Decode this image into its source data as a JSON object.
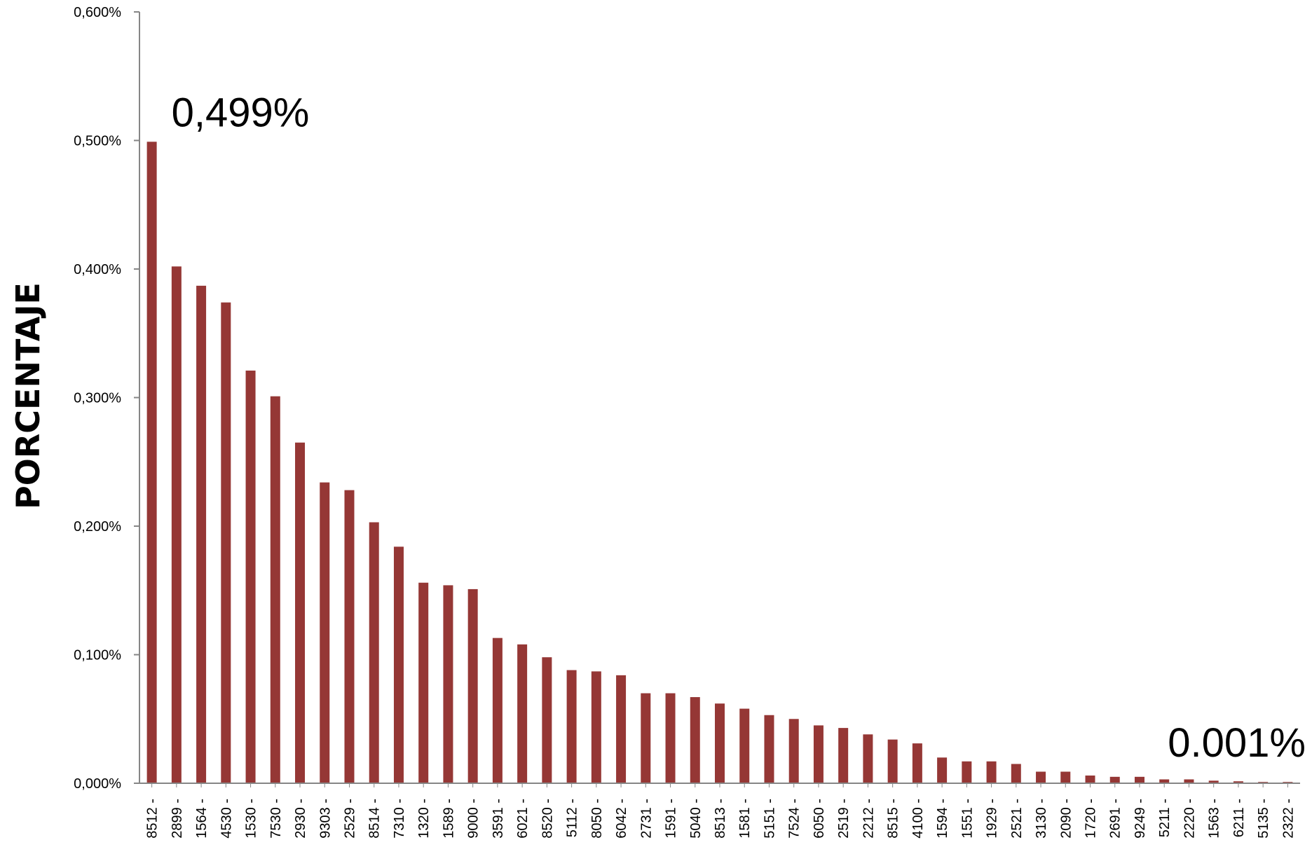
{
  "chart_data": {
    "type": "bar",
    "title": "",
    "xlabel": "",
    "ylabel": "PORCENTAJE",
    "ylim": [
      0,
      0.6
    ],
    "yticks": [
      "0,000%",
      "0,100%",
      "0,200%",
      "0,300%",
      "0,400%",
      "0,500%",
      "0,600%"
    ],
    "yunit": "%",
    "grid": false,
    "legend": "none",
    "bar_color": "#953735",
    "axis_color": "#868686",
    "categories": [
      "8512 -",
      "2899 -",
      "1564 -",
      "4530 -",
      "1530 -",
      "7530 -",
      "2930 -",
      "9303 -",
      "2529 -",
      "8514 -",
      "7310 -",
      "1320 -",
      "1589 -",
      "9000 -",
      "3591 -",
      "6021 -",
      "8520 -",
      "5112 -",
      "8050 -",
      "6042 -",
      "2731 -",
      "1591 -",
      "5040 -",
      "8513 -",
      "1581 -",
      "5151 -",
      "7524 -",
      "6050 -",
      "2519 -",
      "2212 -",
      "8515 -",
      "4100 -",
      "1594 -",
      "1551 -",
      "1929 -",
      "2521 -",
      "3130 -",
      "2090 -",
      "1720 -",
      "2691 -",
      "9249 -",
      "5211 -",
      "2220 -",
      "1563 -",
      "6211 -",
      "5135 -",
      "2322 -"
    ],
    "values": [
      0.499,
      0.402,
      0.387,
      0.374,
      0.321,
      0.301,
      0.265,
      0.234,
      0.228,
      0.203,
      0.184,
      0.156,
      0.154,
      0.151,
      0.113,
      0.108,
      0.098,
      0.088,
      0.087,
      0.084,
      0.07,
      0.07,
      0.067,
      0.062,
      0.058,
      0.053,
      0.05,
      0.045,
      0.043,
      0.038,
      0.034,
      0.031,
      0.02,
      0.017,
      0.017,
      0.015,
      0.009,
      0.009,
      0.006,
      0.005,
      0.005,
      0.003,
      0.003,
      0.002,
      0.0015,
      0.001,
      0.001
    ],
    "annotations": [
      {
        "text": "0,499%",
        "category_index": 0
      },
      {
        "text": "0.001%",
        "category_index": 46
      }
    ]
  }
}
